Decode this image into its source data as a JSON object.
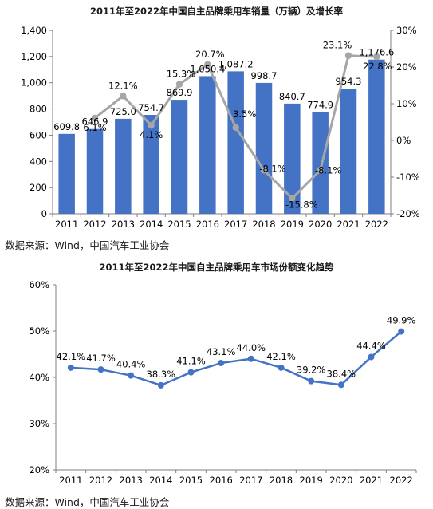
{
  "chart1": {
    "title": "2011年至2022年中国自主品牌乘用车销量（万辆）及增长率",
    "source": "数据来源：Wind，中国汽车工业协会"
  },
  "chart2": {
    "title": "2011年至2022年中国自主品牌乘用车市场份额变化趋势",
    "source": "数据来源：Wind，中国汽车工业协会"
  },
  "colors": {
    "bar": "#4472C4",
    "growth_line": "#A6A6A6",
    "share_line": "#4472C4",
    "axis": "#7f7f7f"
  },
  "chart_data": [
    {
      "type": "bar",
      "title": "2011年至2022年中国自主品牌乘用车销量（万辆）及增长率",
      "categories": [
        "2011",
        "2012",
        "2013",
        "2014",
        "2015",
        "2016",
        "2017",
        "2018",
        "2019",
        "2020",
        "2021",
        "2022"
      ],
      "series": [
        {
          "axis": "left",
          "type": "bar",
          "values": [
            609.8,
            646.9,
            725.0,
            754.7,
            869.9,
            1050.4,
            1087.2,
            998.7,
            840.7,
            774.9,
            954.3,
            1176.6
          ],
          "labels": [
            "609.8",
            "646.9",
            "725.0",
            "754.7",
            "869.9",
            "1,050.4",
            "1,087.2",
            "998.7",
            "840.7",
            "774.9",
            "954.3",
            "1,176.6"
          ]
        },
        {
          "axis": "right",
          "type": "line",
          "values": [
            null,
            6.1,
            12.1,
            4.1,
            15.3,
            20.7,
            3.5,
            -8.1,
            -15.8,
            -8.1,
            23.1,
            22.8
          ],
          "labels": [
            "",
            "6.1%",
            "12.1%",
            "4.1%",
            "15.3%",
            "20.7%",
            "3.5%",
            "-8.1%",
            "-15.8%",
            "-8.1%",
            "23.1%",
            "22.8%"
          ]
        }
      ],
      "ylim_left": [
        0,
        1400
      ],
      "yticks_left": [
        "0",
        "200",
        "400",
        "600",
        "800",
        "1,000",
        "1,200",
        "1,400"
      ],
      "ylim_right": [
        -20,
        30
      ],
      "yticks_right": [
        "-20%",
        "-10%",
        "0%",
        "10%",
        "20%",
        "30%"
      ],
      "grid": false
    },
    {
      "type": "line",
      "title": "2011年至2022年中国自主品牌乘用车市场份额变化趋势",
      "categories": [
        "2011",
        "2012",
        "2013",
        "2014",
        "2015",
        "2016",
        "2017",
        "2018",
        "2019",
        "2020",
        "2021",
        "2022"
      ],
      "series": [
        {
          "values": [
            42.1,
            41.7,
            40.4,
            38.3,
            41.1,
            43.1,
            44.0,
            42.1,
            39.2,
            38.4,
            44.4,
            49.9
          ],
          "labels": [
            "42.1%",
            "41.7%",
            "40.4%",
            "38.3%",
            "41.1%",
            "43.1%",
            "44.0%",
            "42.1%",
            "39.2%",
            "38.4%",
            "44.4%",
            "49.9%"
          ]
        }
      ],
      "ylim": [
        20,
        60
      ],
      "yticks": [
        "20%",
        "30%",
        "40%",
        "50%",
        "60%"
      ],
      "grid": false
    }
  ]
}
